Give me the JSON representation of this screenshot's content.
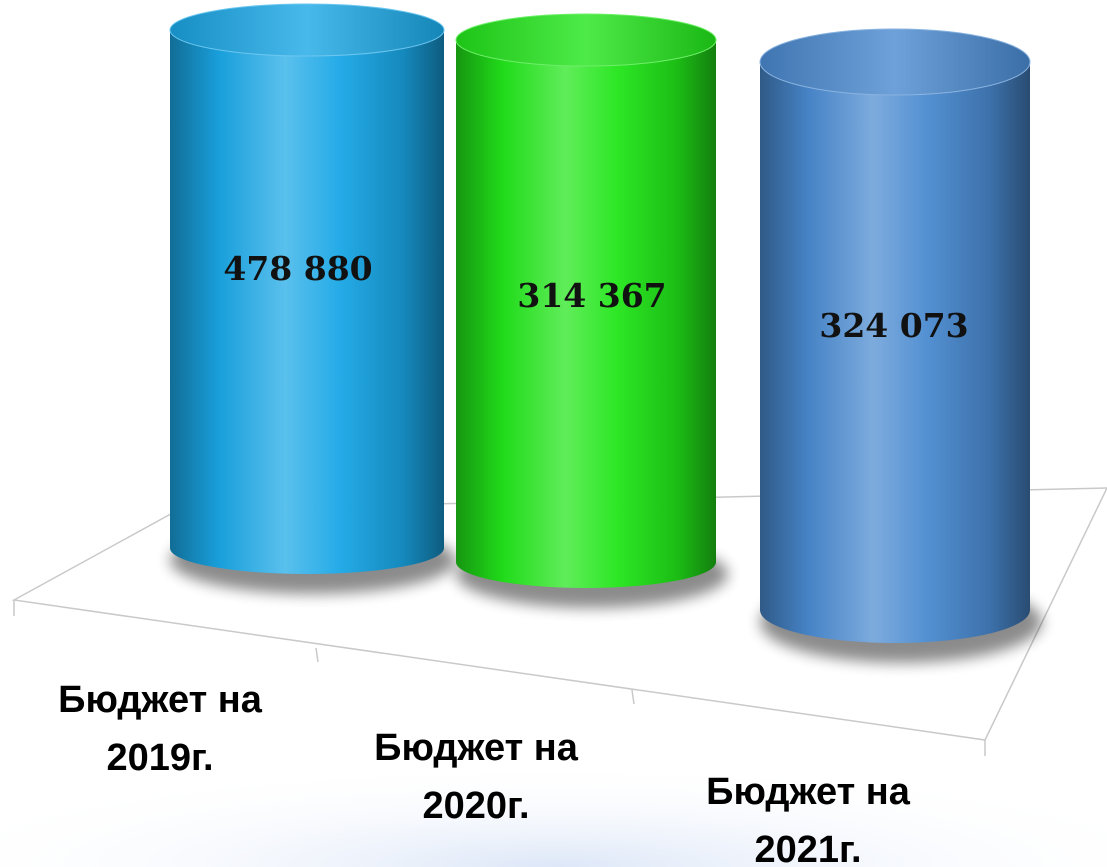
{
  "chart_data": {
    "type": "bar",
    "bar_style": "3d-cylinder",
    "categories": [
      [
        "Бюджет на",
        "2019г."
      ],
      [
        "Бюджет на",
        "2020г."
      ],
      [
        "Бюджет на",
        "2021г."
      ]
    ],
    "values": [
      478880,
      314367,
      324073
    ],
    "value_labels": [
      "478 880",
      "314 367",
      "324 073"
    ],
    "colors": [
      "#1AA7E6",
      "#22E61A",
      "#4A8AD0"
    ],
    "grid": false,
    "legend": "none"
  }
}
